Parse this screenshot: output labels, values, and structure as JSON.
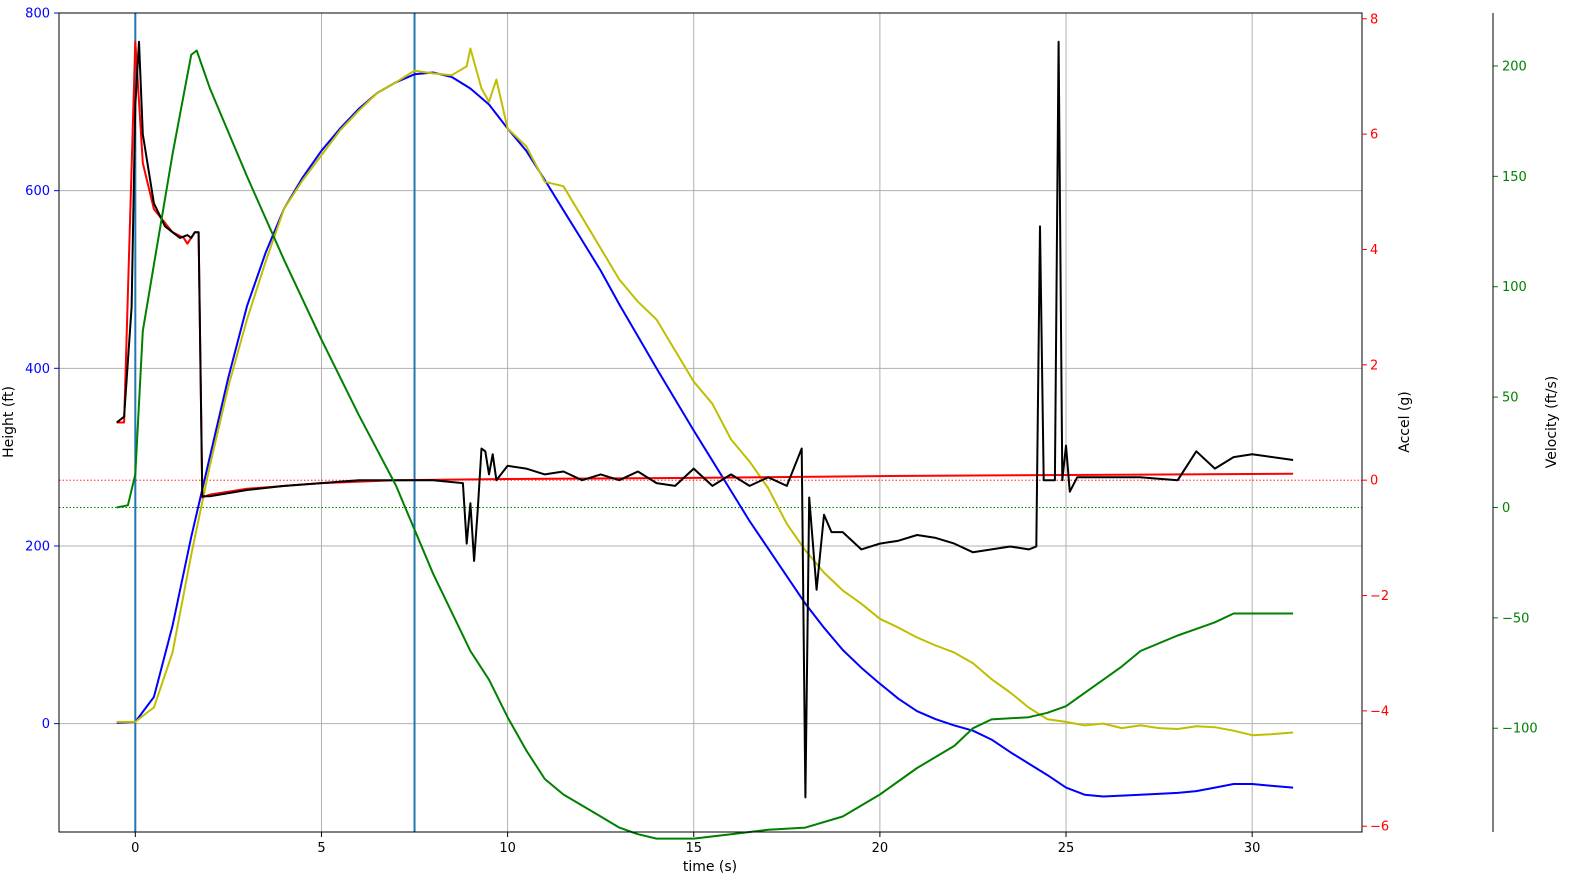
{
  "chart_data": {
    "type": "line",
    "xlabel": "time (s)",
    "xlim": [
      -2.05,
      32.95
    ],
    "x_ticks": [
      0,
      5,
      10,
      15,
      20,
      25,
      30
    ],
    "grid": true,
    "axes": {
      "height": {
        "label": "Height (ft)",
        "color": "#0000ff",
        "ylim": [
          -122,
          800
        ],
        "ticks": [
          0,
          200,
          400,
          600,
          800
        ]
      },
      "accel": {
        "label": "Accel (g)",
        "color": "#ff0000",
        "ylim": [
          -6.1,
          8.1
        ],
        "ticks": [
          -6,
          -4,
          -2,
          0,
          2,
          4,
          6,
          8
        ]
      },
      "velocity": {
        "label": "Velocity (ft/s)",
        "color": "#008000",
        "ylim": [
          -147,
          224
        ],
        "ticks": [
          -100,
          -50,
          0,
          50,
          100,
          150,
          200
        ]
      }
    },
    "vlines": [
      {
        "x": 0,
        "color": "#1f77b4"
      },
      {
        "x": 7.5,
        "color": "#1f77b4"
      }
    ],
    "hlines": [
      {
        "axis": "accel",
        "y": 0,
        "color": "#ff0000",
        "style": "dotted"
      },
      {
        "axis": "velocity",
        "y": 0,
        "color": "#008000",
        "style": "dotted"
      }
    ],
    "series": [
      {
        "axis": "height",
        "color": "#0000ff",
        "points": [
          [
            -0.5,
            1
          ],
          [
            0,
            2
          ],
          [
            0.5,
            30
          ],
          [
            1,
            110
          ],
          [
            1.5,
            210
          ],
          [
            2,
            300
          ],
          [
            2.5,
            390
          ],
          [
            3,
            470
          ],
          [
            3.5,
            530
          ],
          [
            4,
            580
          ],
          [
            4.5,
            615
          ],
          [
            5,
            645
          ],
          [
            5.5,
            670
          ],
          [
            6,
            692
          ],
          [
            6.5,
            710
          ],
          [
            7,
            722
          ],
          [
            7.5,
            731
          ],
          [
            8,
            733
          ],
          [
            8.5,
            728
          ],
          [
            9,
            715
          ],
          [
            9.5,
            697
          ],
          [
            10,
            670
          ],
          [
            10.5,
            645
          ],
          [
            11,
            612
          ],
          [
            11.5,
            578
          ],
          [
            12,
            544
          ],
          [
            12.5,
            510
          ],
          [
            13,
            472
          ],
          [
            13.5,
            436
          ],
          [
            14,
            400
          ],
          [
            14.5,
            365
          ],
          [
            15,
            330
          ],
          [
            15.5,
            296
          ],
          [
            16,
            262
          ],
          [
            16.5,
            228
          ],
          [
            17,
            197
          ],
          [
            17.5,
            166
          ],
          [
            18,
            135
          ],
          [
            18.5,
            108
          ],
          [
            19,
            83
          ],
          [
            19.5,
            63
          ],
          [
            20,
            45
          ],
          [
            20.5,
            28
          ],
          [
            21,
            14
          ],
          [
            21.5,
            5
          ],
          [
            22,
            -2
          ],
          [
            22.5,
            -8
          ],
          [
            23,
            -18
          ],
          [
            23.5,
            -32
          ],
          [
            24,
            -45
          ],
          [
            24.5,
            -58
          ],
          [
            25,
            -72
          ],
          [
            25.5,
            -80
          ],
          [
            26,
            -82
          ],
          [
            27,
            -80
          ],
          [
            28,
            -78
          ],
          [
            28.5,
            -76
          ],
          [
            29,
            -72
          ],
          [
            29.5,
            -68
          ],
          [
            30,
            -68
          ],
          [
            30.5,
            -70
          ],
          [
            31.1,
            -72
          ]
        ]
      },
      {
        "axis": "height",
        "color": "#bfbf00",
        "points": [
          [
            -0.5,
            2
          ],
          [
            0,
            2
          ],
          [
            0.3,
            12
          ],
          [
            0.5,
            18
          ],
          [
            1,
            80
          ],
          [
            1.5,
            190
          ],
          [
            2,
            290
          ],
          [
            2.5,
            380
          ],
          [
            3,
            455
          ],
          [
            3.5,
            520
          ],
          [
            4,
            580
          ],
          [
            4.5,
            612
          ],
          [
            5,
            640
          ],
          [
            5.5,
            668
          ],
          [
            6,
            690
          ],
          [
            6.5,
            710
          ],
          [
            7,
            722
          ],
          [
            7.5,
            735
          ],
          [
            8,
            732
          ],
          [
            8.5,
            730
          ],
          [
            8.9,
            740
          ],
          [
            9,
            760
          ],
          [
            9.3,
            715
          ],
          [
            9.5,
            700
          ],
          [
            9.7,
            725
          ],
          [
            10,
            670
          ],
          [
            10.5,
            650
          ],
          [
            11,
            610
          ],
          [
            11.5,
            605
          ],
          [
            12,
            570
          ],
          [
            12.5,
            535
          ],
          [
            13,
            500
          ],
          [
            13.5,
            475
          ],
          [
            14,
            455
          ],
          [
            14.5,
            420
          ],
          [
            15,
            385
          ],
          [
            15.5,
            360
          ],
          [
            16,
            320
          ],
          [
            16.5,
            295
          ],
          [
            17,
            265
          ],
          [
            17.5,
            225
          ],
          [
            18,
            195
          ],
          [
            18.5,
            170
          ],
          [
            19,
            150
          ],
          [
            19.5,
            135
          ],
          [
            20,
            118
          ],
          [
            20.5,
            108
          ],
          [
            21,
            97
          ],
          [
            21.5,
            88
          ],
          [
            22,
            80
          ],
          [
            22.5,
            68
          ],
          [
            23,
            50
          ],
          [
            23.5,
            35
          ],
          [
            24,
            18
          ],
          [
            24.5,
            5
          ],
          [
            25,
            2
          ],
          [
            25.5,
            -2
          ],
          [
            26,
            0
          ],
          [
            26.5,
            -5
          ],
          [
            27,
            -2
          ],
          [
            27.5,
            -5
          ],
          [
            28,
            -6
          ],
          [
            28.5,
            -3
          ],
          [
            29,
            -4
          ],
          [
            29.5,
            -8
          ],
          [
            30,
            -13
          ],
          [
            30.5,
            -12
          ],
          [
            31.1,
            -10
          ]
        ]
      },
      {
        "axis": "accel",
        "color": "#ff0000",
        "points": [
          [
            -0.5,
            1
          ],
          [
            -0.3,
            1
          ],
          [
            0,
            7.6
          ],
          [
            0.2,
            5.5
          ],
          [
            0.5,
            4.7
          ],
          [
            1,
            4.3
          ],
          [
            1.3,
            4.2
          ],
          [
            1.4,
            4.1
          ],
          [
            1.6,
            4.3
          ],
          [
            1.7,
            4.3
          ],
          [
            1.8,
            -0.3
          ],
          [
            2,
            -0.25
          ],
          [
            3,
            -0.15
          ],
          [
            5,
            -0.05
          ],
          [
            7,
            0
          ],
          [
            10,
            0.02
          ],
          [
            15,
            0.04
          ],
          [
            20,
            0.07
          ],
          [
            25,
            0.09
          ],
          [
            31.1,
            0.11
          ]
        ]
      },
      {
        "axis": "accel",
        "color": "#000000",
        "points": [
          [
            -0.5,
            1
          ],
          [
            -0.3,
            1.1
          ],
          [
            -0.1,
            3
          ],
          [
            0,
            6.5
          ],
          [
            0.1,
            7.6
          ],
          [
            0.2,
            6
          ],
          [
            0.5,
            4.8
          ],
          [
            0.8,
            4.4
          ],
          [
            1,
            4.3
          ],
          [
            1.2,
            4.2
          ],
          [
            1.4,
            4.25
          ],
          [
            1.5,
            4.2
          ],
          [
            1.6,
            4.3
          ],
          [
            1.7,
            4.3
          ],
          [
            1.8,
            -0.28
          ],
          [
            2,
            -0.28
          ],
          [
            3,
            -0.17
          ],
          [
            4,
            -0.1
          ],
          [
            5,
            -0.05
          ],
          [
            6,
            0
          ],
          [
            7,
            0
          ],
          [
            8,
            0
          ],
          [
            8.8,
            -0.05
          ],
          [
            8.9,
            -1.1
          ],
          [
            9,
            -0.4
          ],
          [
            9.1,
            -1.4
          ],
          [
            9.2,
            -0.5
          ],
          [
            9.3,
            0.55
          ],
          [
            9.4,
            0.5
          ],
          [
            9.5,
            0.1
          ],
          [
            9.6,
            0.45
          ],
          [
            9.7,
            0
          ],
          [
            10,
            0.25
          ],
          [
            10.5,
            0.2
          ],
          [
            11,
            0.1
          ],
          [
            11.5,
            0.15
          ],
          [
            12,
            0
          ],
          [
            12.5,
            0.1
          ],
          [
            13,
            0
          ],
          [
            13.5,
            0.15
          ],
          [
            14,
            -0.05
          ],
          [
            14.5,
            -0.1
          ],
          [
            15,
            0.2
          ],
          [
            15.5,
            -0.1
          ],
          [
            16,
            0.1
          ],
          [
            16.5,
            -0.1
          ],
          [
            17,
            0.05
          ],
          [
            17.5,
            -0.1
          ],
          [
            17.9,
            0.55
          ],
          [
            18,
            -5.5
          ],
          [
            18.1,
            -0.3
          ],
          [
            18.3,
            -1.9
          ],
          [
            18.5,
            -0.6
          ],
          [
            18.7,
            -0.9
          ],
          [
            19,
            -0.9
          ],
          [
            19.5,
            -1.2
          ],
          [
            20,
            -1.1
          ],
          [
            20.5,
            -1.05
          ],
          [
            21,
            -0.95
          ],
          [
            21.5,
            -1.0
          ],
          [
            22,
            -1.1
          ],
          [
            22.5,
            -1.25
          ],
          [
            23,
            -1.2
          ],
          [
            23.5,
            -1.15
          ],
          [
            24,
            -1.2
          ],
          [
            24.2,
            -1.15
          ],
          [
            24.3,
            4.4
          ],
          [
            24.4,
            0
          ],
          [
            24.7,
            0
          ],
          [
            24.8,
            7.6
          ],
          [
            24.9,
            0
          ],
          [
            25,
            0.6
          ],
          [
            25.1,
            -0.2
          ],
          [
            25.3,
            0.05
          ],
          [
            26,
            0.05
          ],
          [
            27,
            0.05
          ],
          [
            28,
            0
          ],
          [
            28.5,
            0.5
          ],
          [
            29,
            0.2
          ],
          [
            29.5,
            0.4
          ],
          [
            30,
            0.45
          ],
          [
            31.1,
            0.35
          ]
        ]
      },
      {
        "axis": "velocity",
        "color": "#008000",
        "points": [
          [
            -0.5,
            0
          ],
          [
            -0.2,
            1
          ],
          [
            0,
            15
          ],
          [
            0.2,
            80
          ],
          [
            0.5,
            110
          ],
          [
            1,
            160
          ],
          [
            1.5,
            205
          ],
          [
            1.65,
            207
          ],
          [
            2,
            190
          ],
          [
            3,
            150
          ],
          [
            4,
            112
          ],
          [
            5,
            76
          ],
          [
            6,
            42
          ],
          [
            7,
            10
          ],
          [
            8,
            -30
          ],
          [
            9,
            -65
          ],
          [
            9.5,
            -78
          ],
          [
            10,
            -95
          ],
          [
            10.5,
            -110
          ],
          [
            11,
            -123
          ],
          [
            11.5,
            -130
          ],
          [
            12,
            -135
          ],
          [
            12.5,
            -140
          ],
          [
            13,
            -145
          ],
          [
            13.5,
            -148
          ],
          [
            14,
            -150
          ],
          [
            15,
            -150
          ],
          [
            16,
            -148
          ],
          [
            17,
            -146
          ],
          [
            18,
            -145
          ],
          [
            19,
            -140
          ],
          [
            20,
            -130
          ],
          [
            21,
            -118
          ],
          [
            22,
            -108
          ],
          [
            22.5,
            -100
          ],
          [
            23,
            -96
          ],
          [
            24,
            -95
          ],
          [
            24.5,
            -93
          ],
          [
            25,
            -90
          ],
          [
            25.5,
            -84
          ],
          [
            26,
            -78
          ],
          [
            26.5,
            -72
          ],
          [
            27,
            -65
          ],
          [
            28,
            -58
          ],
          [
            28.5,
            -55
          ],
          [
            29,
            -52
          ],
          [
            29.5,
            -48
          ],
          [
            30,
            -48
          ],
          [
            31.1,
            -48
          ]
        ]
      }
    ]
  }
}
